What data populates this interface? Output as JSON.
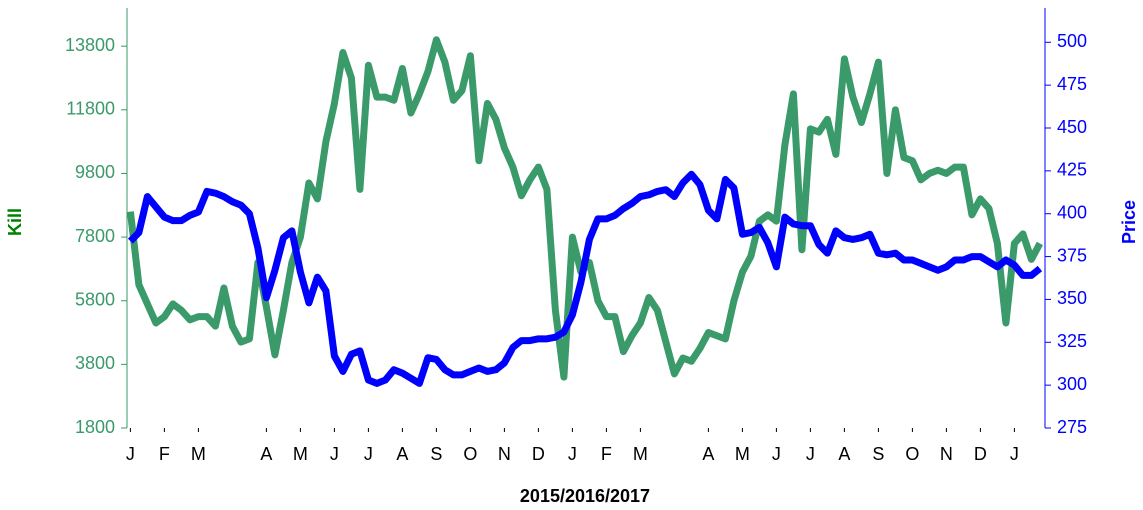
{
  "chart_data": {
    "type": "line",
    "x_label": "2015/2016/2017",
    "y_label": "Kill",
    "y2_label": "Price",
    "xlim": [
      -0.1,
      26.9
    ],
    "xticks": [
      {
        "value": 0,
        "label": "J"
      },
      {
        "value": 1,
        "label": "F"
      },
      {
        "value": 2,
        "label": "M"
      },
      {
        "value": 4,
        "label": "A"
      },
      {
        "value": 5,
        "label": "M"
      },
      {
        "value": 6,
        "label": "J"
      },
      {
        "value": 7,
        "label": "J"
      },
      {
        "value": 8,
        "label": "A"
      },
      {
        "value": 9,
        "label": "S"
      },
      {
        "value": 10,
        "label": "O"
      },
      {
        "value": 11,
        "label": "N"
      },
      {
        "value": 12,
        "label": "D"
      },
      {
        "value": 13,
        "label": "J"
      },
      {
        "value": 14,
        "label": "F"
      },
      {
        "value": 15,
        "label": "M"
      },
      {
        "value": 17,
        "label": "A"
      },
      {
        "value": 18,
        "label": "M"
      },
      {
        "value": 19,
        "label": "J"
      },
      {
        "value": 20,
        "label": "J"
      },
      {
        "value": 21,
        "label": "A"
      },
      {
        "value": 22,
        "label": "S"
      },
      {
        "value": 23,
        "label": "O"
      },
      {
        "value": 24,
        "label": "N"
      },
      {
        "value": 25,
        "label": "D"
      },
      {
        "value": 26,
        "label": "J"
      }
    ],
    "ylim": [
      1800,
      15000
    ],
    "yticks": [
      1800,
      3800,
      5800,
      7800,
      9800,
      11800,
      13800
    ],
    "y2lim": [
      275,
      520
    ],
    "y2ticks": [
      275,
      300,
      325,
      350,
      375,
      400,
      425,
      450,
      475,
      500
    ],
    "y_color": "#3a9a6a",
    "y_title_color": "#008000",
    "y2_color": "#0000ff",
    "x": [
      0,
      0.25,
      0.5,
      0.75,
      1,
      1.25,
      1.5,
      1.75,
      2,
      2.25,
      2.5,
      2.75,
      3,
      3.25,
      3.5,
      3.75,
      4,
      4.25,
      4.5,
      4.75,
      5,
      5.25,
      5.5,
      5.75,
      6,
      6.25,
      6.5,
      6.75,
      7,
      7.25,
      7.5,
      7.75,
      8,
      8.25,
      8.5,
      8.75,
      9,
      9.25,
      9.5,
      9.75,
      10,
      10.25,
      10.5,
      10.75,
      11,
      11.25,
      11.5,
      11.75,
      12,
      12.25,
      12.5,
      12.75,
      13,
      13.25,
      13.5,
      13.75,
      14,
      14.25,
      14.5,
      14.75,
      15,
      15.25,
      15.5,
      15.75,
      16,
      16.25,
      16.5,
      16.75,
      17,
      17.25,
      17.5,
      17.75,
      18,
      18.25,
      18.5,
      18.75,
      19,
      19.25,
      19.5,
      19.75,
      20,
      20.25,
      20.5,
      20.75,
      21,
      21.25,
      21.5,
      21.75,
      22,
      22.25,
      22.5,
      22.75,
      23,
      23.25,
      23.5,
      23.75,
      24,
      24.25,
      24.5,
      24.75,
      25,
      25.25,
      25.5,
      25.75,
      26,
      26.25,
      26.5,
      26.75
    ],
    "series": [
      {
        "name": "Kill",
        "color": "#3a9a6a",
        "axis": "y",
        "values": [
          8600,
          6300,
          5700,
          5100,
          5300,
          5700,
          5500,
          5200,
          5300,
          5300,
          5000,
          6200,
          5000,
          4500,
          4600,
          7000,
          5600,
          4100,
          5500,
          7000,
          7800,
          9500,
          9000,
          10800,
          12000,
          13600,
          12800,
          9300,
          13200,
          12200,
          12200,
          12100,
          13100,
          11700,
          12300,
          13000,
          14000,
          13300,
          12100,
          12400,
          13500,
          10200,
          12000,
          11500,
          10600,
          10000,
          9100,
          9600,
          10000,
          9300,
          5500,
          3400,
          7800,
          6700,
          7000,
          5800,
          5300,
          5300,
          4200,
          4700,
          5100,
          5900,
          5500,
          4500,
          3500,
          4000,
          3900,
          4300,
          4800,
          4700,
          4600,
          5800,
          6700,
          7200,
          8300,
          8500,
          8300,
          10700,
          12300,
          7400,
          11200,
          11100,
          11500,
          10400,
          13400,
          12200,
          11400,
          12300,
          13300,
          9800,
          11800,
          10300,
          10200,
          9600,
          9800,
          9900,
          9800,
          10000,
          10000,
          8500,
          9000,
          8700,
          7600,
          5100,
          7600,
          7900,
          7100,
          7600
        ]
      },
      {
        "name": "Price",
        "color": "#0000ff",
        "axis": "y2",
        "values": [
          384,
          389,
          410,
          404,
          398,
          396,
          396,
          399,
          401,
          413,
          412,
          410,
          407,
          405,
          400,
          380,
          351,
          367,
          386,
          390,
          366,
          348,
          363,
          355,
          317,
          308,
          318,
          320,
          303,
          301,
          303,
          309,
          307,
          304,
          301,
          316,
          315,
          309,
          306,
          306,
          308,
          310,
          308,
          309,
          313,
          322,
          326,
          326,
          327,
          327,
          328,
          331,
          341,
          360,
          385,
          397,
          397,
          399,
          403,
          406,
          410,
          411,
          413,
          414,
          410,
          418,
          423,
          417,
          402,
          397,
          420,
          415,
          388,
          389,
          392,
          383,
          369,
          398,
          394,
          393,
          393,
          382,
          377,
          390,
          386,
          385,
          386,
          388,
          377,
          376,
          377,
          373,
          373,
          371,
          369,
          367,
          369,
          373,
          373,
          375,
          375,
          372,
          369,
          373,
          370,
          364,
          364,
          368
        ]
      }
    ]
  }
}
